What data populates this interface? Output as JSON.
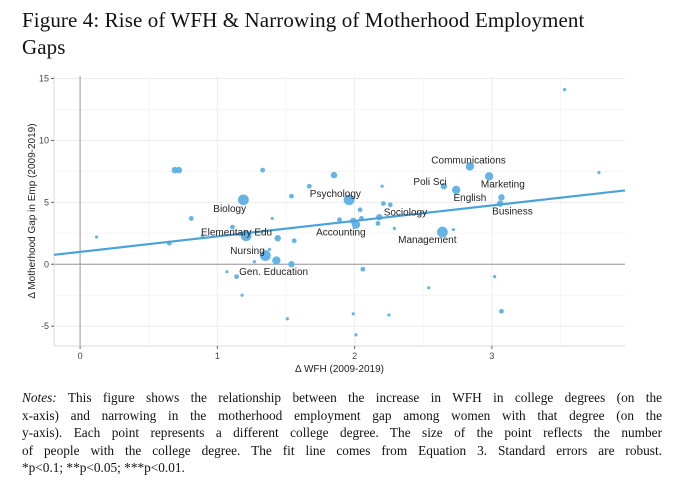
{
  "figure": {
    "title_lines": [
      "Figure 4:  Rise of WFH & Narrowing of Motherhood Employment",
      "Gaps"
    ],
    "notes_label": "Notes:",
    "notes_lines": [
      " This figure shows the relationship between the increase in WFH in college degrees (on the",
      "x-axis) and narrowing in the motherhood employment gap among women with that degree (on the",
      "y-axis). Each point represents a different college degree. The size of the point reflects the number",
      "of people with the college degree. The fit line comes from Equation 3. Standard errors are robust.",
      "*p<0.1; **p<0.05; ***p<0.01."
    ]
  },
  "chart_data": {
    "type": "scatter",
    "title": "",
    "xlabel": "Δ WFH (2009-2019)",
    "ylabel": "Δ Motherhood Gap in Emp (2009-2019)",
    "xlim": [
      -0.19,
      3.97
    ],
    "ylim": [
      -6.6,
      15.2
    ],
    "xticks": [
      0,
      1,
      2,
      3
    ],
    "yticks": [
      -5,
      0,
      5,
      10,
      15
    ],
    "grid": true,
    "point_color": "#59aee3",
    "line_color": "#4aa3d8",
    "fit_line": {
      "intercept": 1.0,
      "slope": 1.25
    },
    "points": [
      {
        "x": 0.12,
        "y": 2.2,
        "size": 1
      },
      {
        "x": 0.65,
        "y": 1.7,
        "size": 2
      },
      {
        "x": 0.69,
        "y": 7.6,
        "size": 3
      },
      {
        "x": 0.72,
        "y": 7.6,
        "size": 3
      },
      {
        "x": 0.81,
        "y": 3.7,
        "size": 2
      },
      {
        "x": 1.33,
        "y": 7.6,
        "size": 2
      },
      {
        "x": 1.19,
        "y": 5.2,
        "size": 5
      },
      {
        "x": 1.11,
        "y": 3.0,
        "size": 2
      },
      {
        "x": 1.21,
        "y": 2.3,
        "size": 5
      },
      {
        "x": 0.89,
        "y": 2.3,
        "size": 1
      },
      {
        "x": 1.35,
        "y": 0.7,
        "size": 5
      },
      {
        "x": 1.43,
        "y": 0.3,
        "size": 4
      },
      {
        "x": 1.54,
        "y": 0.0,
        "size": 3
      },
      {
        "x": 1.44,
        "y": 2.1,
        "size": 3
      },
      {
        "x": 1.56,
        "y": 1.9,
        "size": 2
      },
      {
        "x": 1.38,
        "y": 1.2,
        "size": 1
      },
      {
        "x": 1.27,
        "y": 0.2,
        "size": 1
      },
      {
        "x": 1.07,
        "y": -0.6,
        "size": 1
      },
      {
        "x": 1.14,
        "y": -1.0,
        "size": 2
      },
      {
        "x": 1.18,
        "y": -2.5,
        "size": 1
      },
      {
        "x": 1.51,
        "y": -4.4,
        "size": 1
      },
      {
        "x": 1.54,
        "y": 5.5,
        "size": 2
      },
      {
        "x": 1.67,
        "y": 6.3,
        "size": 2
      },
      {
        "x": 1.85,
        "y": 7.2,
        "size": 3
      },
      {
        "x": 1.4,
        "y": 3.7,
        "size": 1
      },
      {
        "x": 1.96,
        "y": 5.2,
        "size": 5
      },
      {
        "x": 2.04,
        "y": 4.4,
        "size": 2
      },
      {
        "x": 1.89,
        "y": 3.6,
        "size": 2
      },
      {
        "x": 1.99,
        "y": 3.5,
        "size": 3
      },
      {
        "x": 2.01,
        "y": 3.2,
        "size": 4
      },
      {
        "x": 2.05,
        "y": 3.7,
        "size": 2
      },
      {
        "x": 2.18,
        "y": 3.8,
        "size": 3
      },
      {
        "x": 2.17,
        "y": 3.3,
        "size": 2
      },
      {
        "x": 2.21,
        "y": 4.9,
        "size": 2
      },
      {
        "x": 2.2,
        "y": 6.3,
        "size": 1
      },
      {
        "x": 2.26,
        "y": 4.8,
        "size": 2
      },
      {
        "x": 2.29,
        "y": 2.9,
        "size": 1
      },
      {
        "x": 2.06,
        "y": -0.4,
        "size": 2
      },
      {
        "x": 1.99,
        "y": -4.0,
        "size": 1
      },
      {
        "x": 2.01,
        "y": -5.7,
        "size": 1
      },
      {
        "x": 2.25,
        "y": -4.1,
        "size": 1
      },
      {
        "x": 2.54,
        "y": -1.9,
        "size": 1
      },
      {
        "x": 2.64,
        "y": 2.6,
        "size": 5
      },
      {
        "x": 2.72,
        "y": 2.8,
        "size": 1
      },
      {
        "x": 2.65,
        "y": 6.3,
        "size": 3
      },
      {
        "x": 2.74,
        "y": 6.0,
        "size": 4
      },
      {
        "x": 2.84,
        "y": 7.9,
        "size": 4
      },
      {
        "x": 2.98,
        "y": 7.1,
        "size": 4
      },
      {
        "x": 3.07,
        "y": 5.4,
        "size": 3
      },
      {
        "x": 3.06,
        "y": 4.9,
        "size": 3
      },
      {
        "x": 3.02,
        "y": -1.0,
        "size": 1
      },
      {
        "x": 3.07,
        "y": -3.8,
        "size": 2
      },
      {
        "x": 3.53,
        "y": 14.1,
        "size": 1
      },
      {
        "x": 3.78,
        "y": 7.4,
        "size": 1
      }
    ],
    "annotations": [
      {
        "text": "Communications",
        "x": 2.83,
        "y": 8.4
      },
      {
        "text": "Poli Sci",
        "x": 2.55,
        "y": 6.7
      },
      {
        "text": "Marketing",
        "x": 3.08,
        "y": 6.5
      },
      {
        "text": "English",
        "x": 2.84,
        "y": 5.4
      },
      {
        "text": "Business",
        "x": 3.15,
        "y": 4.3
      },
      {
        "text": "Sociology",
        "x": 2.37,
        "y": 4.2
      },
      {
        "text": "Psychology",
        "x": 1.86,
        "y": 5.7
      },
      {
        "text": "Biology",
        "x": 1.09,
        "y": 4.5
      },
      {
        "text": "Accounting",
        "x": 1.9,
        "y": 2.6
      },
      {
        "text": "Management",
        "x": 2.53,
        "y": 2.0
      },
      {
        "text": "Elementary Edu",
        "x": 1.14,
        "y": 2.6
      },
      {
        "text": "Nursing",
        "x": 1.22,
        "y": 1.1
      },
      {
        "text": "Gen. Education",
        "x": 1.41,
        "y": -0.6
      }
    ]
  }
}
